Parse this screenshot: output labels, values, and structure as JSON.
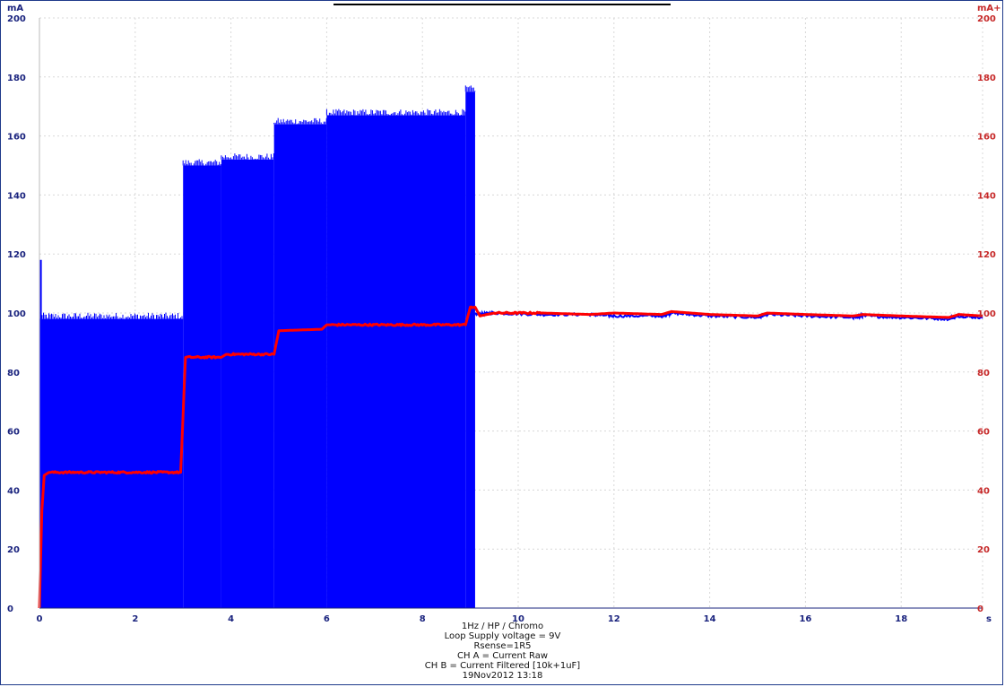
{
  "chart_data": {
    "type": "line",
    "x_unit_label": "s",
    "y_left_unit_label": "mA",
    "y_right_unit_label": "mA+",
    "xlim": [
      0,
      19.7
    ],
    "ylim": [
      0,
      200
    ],
    "x_ticks": [
      0,
      2,
      4,
      6,
      8,
      10,
      12,
      14,
      16,
      18
    ],
    "y_ticks": [
      0,
      20,
      40,
      60,
      80,
      100,
      120,
      140,
      160,
      180,
      200
    ],
    "grid": true,
    "series": [
      {
        "name": "CH A = Current Raw",
        "color": "#0000ff",
        "style": "noisy-band",
        "band": [
          {
            "x0": 0.0,
            "x1": 3.0,
            "low": 0,
            "high": 98
          },
          {
            "x0": 3.0,
            "x1": 3.8,
            "low": 0,
            "high": 150
          },
          {
            "x0": 3.8,
            "x1": 4.9,
            "low": 0,
            "high": 152
          },
          {
            "x0": 4.9,
            "x1": 6.0,
            "low": 0,
            "high": 164
          },
          {
            "x0": 6.0,
            "x1": 8.9,
            "low": 0,
            "high": 167
          },
          {
            "x0": 8.9,
            "x1": 9.1,
            "low": 0,
            "high": 175
          }
        ],
        "tail": [
          [
            9.1,
            99.5
          ],
          [
            9.5,
            100
          ],
          [
            10.5,
            99.5
          ],
          [
            11.5,
            99.5
          ],
          [
            12,
            99
          ],
          [
            13,
            99
          ],
          [
            13.2,
            100
          ],
          [
            14,
            99
          ],
          [
            15,
            98.5
          ],
          [
            15.2,
            99.5
          ],
          [
            16,
            99
          ],
          [
            17,
            98.5
          ],
          [
            17.2,
            99
          ],
          [
            18,
            98.5
          ],
          [
            19,
            98
          ],
          [
            19.2,
            99
          ],
          [
            19.7,
            98.5
          ]
        ]
      },
      {
        "name": "CH B = Current Filtered [10k+1uF]",
        "color": "#ff0000",
        "points": [
          [
            0.0,
            0
          ],
          [
            0.05,
            33
          ],
          [
            0.1,
            45
          ],
          [
            0.2,
            46
          ],
          [
            2.95,
            46
          ],
          [
            3.05,
            85
          ],
          [
            3.8,
            85
          ],
          [
            3.9,
            86
          ],
          [
            4.9,
            86
          ],
          [
            5.0,
            94
          ],
          [
            5.9,
            94.5
          ],
          [
            6.0,
            96
          ],
          [
            8.9,
            96
          ],
          [
            9.0,
            102
          ],
          [
            9.1,
            102
          ],
          [
            9.2,
            99
          ],
          [
            9.5,
            100
          ],
          [
            10.5,
            100
          ],
          [
            11.5,
            99.5
          ],
          [
            12,
            100
          ],
          [
            13,
            99.5
          ],
          [
            13.2,
            100.5
          ],
          [
            14,
            99.5
          ],
          [
            15,
            99
          ],
          [
            15.2,
            100
          ],
          [
            16,
            99.5
          ],
          [
            17,
            99
          ],
          [
            17.2,
            99.5
          ],
          [
            18,
            99
          ],
          [
            19,
            98.5
          ],
          [
            19.2,
            99.5
          ],
          [
            19.7,
            99
          ]
        ]
      }
    ]
  },
  "caption_lines": [
    "1Hz /  HP / Chromo",
    "Loop Supply voltage = 9V",
    "Rsense=1R5",
    "CH A = Current Raw",
    "CH B = Current Filtered [10k+1uF]",
    "19Nov2012  13:18"
  ]
}
